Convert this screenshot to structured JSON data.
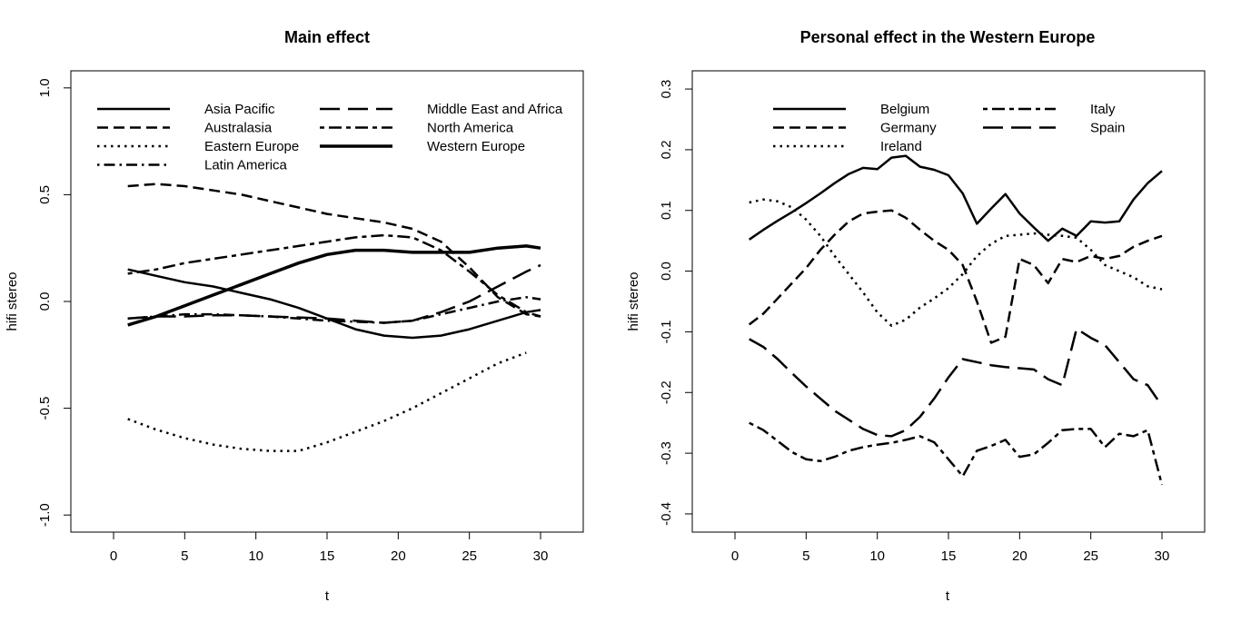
{
  "chart_data": [
    {
      "type": "line",
      "title": "Main effect",
      "xlabel": "t",
      "ylabel": "hifi stereo",
      "xlim": [
        -3,
        33
      ],
      "ylim": [
        -1.08,
        1.08
      ],
      "xticks": [
        0,
        5,
        10,
        15,
        20,
        25,
        30
      ],
      "xtick_labels": [
        "0",
        "5",
        "10",
        "15",
        "20",
        "25",
        "30"
      ],
      "yticks": [
        -1.0,
        -0.5,
        0.0,
        0.5,
        1.0
      ],
      "ytick_labels": [
        "-1.0",
        "-0.5",
        "0.0",
        "0.5",
        "1.0"
      ],
      "legend_columns": 2,
      "series": [
        {
          "name": "Asia Pacific",
          "style": "solid",
          "width": 2.5,
          "x": [
            1,
            3,
            5,
            7,
            9,
            11,
            13,
            15,
            17,
            19,
            21,
            23,
            25,
            27,
            29,
            30
          ],
          "y": [
            0.15,
            0.12,
            0.09,
            0.07,
            0.04,
            0.01,
            -0.03,
            -0.08,
            -0.13,
            -0.16,
            -0.17,
            -0.16,
            -0.13,
            -0.09,
            -0.05,
            -0.04
          ]
        },
        {
          "name": "Australasia",
          "style": "dashed",
          "width": 2.5,
          "x": [
            1,
            3,
            5,
            7,
            9,
            11,
            13,
            15,
            17,
            19,
            21,
            23,
            25,
            27,
            29,
            30
          ],
          "y": [
            0.54,
            0.55,
            0.54,
            0.52,
            0.5,
            0.47,
            0.44,
            0.41,
            0.39,
            0.37,
            0.34,
            0.28,
            0.16,
            0.02,
            -0.06,
            -0.07
          ]
        },
        {
          "name": "Eastern Europe",
          "style": "dotted",
          "width": 2.5,
          "x": [
            1,
            3,
            5,
            7,
            9,
            11,
            13,
            15,
            17,
            19,
            21,
            23,
            25,
            27,
            29
          ],
          "y": [
            -0.55,
            -0.6,
            -0.64,
            -0.67,
            -0.69,
            -0.7,
            -0.7,
            -0.66,
            -0.61,
            -0.56,
            -0.5,
            -0.43,
            -0.36,
            -0.29,
            -0.24
          ]
        },
        {
          "name": "Latin America",
          "style": "dashdot",
          "width": 2.5,
          "x": [
            1,
            3,
            5,
            7,
            9,
            11,
            13,
            15,
            17,
            19,
            21,
            23,
            25,
            27,
            29,
            30
          ],
          "y": [
            -0.08,
            -0.07,
            -0.06,
            -0.06,
            -0.065,
            -0.07,
            -0.08,
            -0.09,
            -0.095,
            -0.1,
            -0.09,
            -0.06,
            -0.03,
            0.0,
            0.02,
            0.01
          ]
        },
        {
          "name": "Middle East and Africa",
          "style": "longdash",
          "width": 2.5,
          "x": [
            1,
            3,
            5,
            7,
            9,
            11,
            13,
            15,
            17,
            19,
            21,
            23,
            25,
            27,
            29,
            30
          ],
          "y": [
            -0.08,
            -0.07,
            -0.07,
            -0.065,
            -0.065,
            -0.07,
            -0.075,
            -0.08,
            -0.09,
            -0.1,
            -0.09,
            -0.05,
            0.0,
            0.07,
            0.14,
            0.17
          ]
        },
        {
          "name": "North America",
          "style": "twodash",
          "width": 2.5,
          "x": [
            1,
            3,
            5,
            7,
            9,
            11,
            13,
            15,
            17,
            19,
            21,
            23,
            25,
            27,
            29,
            30
          ],
          "y": [
            0.13,
            0.15,
            0.18,
            0.2,
            0.22,
            0.24,
            0.26,
            0.28,
            0.3,
            0.31,
            0.3,
            0.24,
            0.14,
            0.03,
            -0.05,
            -0.07
          ]
        },
        {
          "name": "Western Europe",
          "style": "solid",
          "width": 3.5,
          "x": [
            1,
            3,
            5,
            7,
            9,
            11,
            13,
            15,
            17,
            19,
            21,
            23,
            25,
            27,
            29,
            30
          ],
          "y": [
            -0.11,
            -0.07,
            -0.02,
            0.03,
            0.08,
            0.13,
            0.18,
            0.22,
            0.24,
            0.24,
            0.23,
            0.23,
            0.23,
            0.25,
            0.26,
            0.25
          ]
        }
      ]
    },
    {
      "type": "line",
      "title": "Personal effect in the Western Europe",
      "xlabel": "t",
      "ylabel": "hifi stereo",
      "xlim": [
        -3,
        33
      ],
      "ylim": [
        -0.43,
        0.33
      ],
      "xticks": [
        0,
        5,
        10,
        15,
        20,
        25,
        30
      ],
      "xtick_labels": [
        "0",
        "5",
        "10",
        "15",
        "20",
        "25",
        "30"
      ],
      "yticks": [
        -0.4,
        -0.3,
        -0.2,
        -0.1,
        0.0,
        0.1,
        0.2,
        0.3
      ],
      "ytick_labels": [
        "-0.4",
        "-0.3",
        "-0.2",
        "-0.1",
        "0.0",
        "0.1",
        "0.2",
        "0.3"
      ],
      "legend_columns": 2,
      "series": [
        {
          "name": "Belgium",
          "style": "solid",
          "width": 2.5,
          "x": [
            1,
            2,
            3,
            4,
            5,
            6,
            7,
            8,
            9,
            10,
            11,
            12,
            13,
            14,
            15,
            16,
            17,
            18,
            19,
            20,
            21,
            22,
            23,
            24,
            25,
            26,
            27,
            28,
            29,
            30
          ],
          "y": [
            0.052,
            0.068,
            0.083,
            0.097,
            0.112,
            0.128,
            0.145,
            0.16,
            0.17,
            0.168,
            0.187,
            0.19,
            0.172,
            0.167,
            0.158,
            0.128,
            0.078,
            0.103,
            0.127,
            0.095,
            0.072,
            0.05,
            0.07,
            0.058,
            0.082,
            0.08,
            0.082,
            0.118,
            0.145,
            0.165
          ]
        },
        {
          "name": "Germany",
          "style": "dashed",
          "width": 2.5,
          "x": [
            1,
            2,
            3,
            4,
            5,
            6,
            7,
            8,
            9,
            10,
            11,
            12,
            13,
            14,
            15,
            16,
            17,
            18,
            19,
            20,
            21,
            22,
            23,
            24,
            25,
            26,
            27,
            28,
            29,
            30
          ],
          "y": [
            -0.088,
            -0.07,
            -0.045,
            -0.02,
            0.005,
            0.035,
            0.06,
            0.082,
            0.095,
            0.098,
            0.1,
            0.088,
            0.068,
            0.05,
            0.035,
            0.01,
            -0.05,
            -0.118,
            -0.108,
            0.02,
            0.01,
            -0.02,
            0.02,
            0.015,
            0.025,
            0.02,
            0.025,
            0.04,
            0.05,
            0.058
          ]
        },
        {
          "name": "Ireland",
          "style": "dotted",
          "width": 2.5,
          "x": [
            1,
            2,
            3,
            4,
            5,
            6,
            7,
            8,
            9,
            10,
            11,
            12,
            13,
            14,
            15,
            16,
            17,
            18,
            19,
            20,
            21,
            22,
            23,
            24,
            25,
            26,
            27,
            28,
            29,
            30
          ],
          "y": [
            0.113,
            0.118,
            0.115,
            0.105,
            0.085,
            0.058,
            0.025,
            -0.005,
            -0.035,
            -0.068,
            -0.09,
            -0.08,
            -0.06,
            -0.045,
            -0.028,
            -0.005,
            0.025,
            0.045,
            0.058,
            0.06,
            0.062,
            0.06,
            0.058,
            0.055,
            0.035,
            0.01,
            0.0,
            -0.01,
            -0.025,
            -0.03
          ]
        },
        {
          "name": "Italy",
          "style": "twodash",
          "width": 2.5,
          "x": [
            1,
            2,
            3,
            4,
            5,
            6,
            7,
            8,
            9,
            10,
            11,
            12,
            13,
            14,
            15,
            16,
            17,
            18,
            19,
            20,
            21,
            22,
            23,
            24,
            25,
            26,
            27,
            28,
            29,
            30
          ],
          "y": [
            -0.25,
            -0.262,
            -0.28,
            -0.298,
            -0.31,
            -0.313,
            -0.306,
            -0.296,
            -0.29,
            -0.286,
            -0.283,
            -0.278,
            -0.272,
            -0.282,
            -0.31,
            -0.338,
            -0.296,
            -0.288,
            -0.278,
            -0.306,
            -0.302,
            -0.283,
            -0.262,
            -0.26,
            -0.26,
            -0.29,
            -0.268,
            -0.272,
            -0.262,
            -0.352
          ]
        },
        {
          "name": "Spain",
          "style": "longdash",
          "width": 2.5,
          "x": [
            1,
            2,
            3,
            4,
            5,
            6,
            7,
            8,
            9,
            10,
            11,
            12,
            13,
            14,
            15,
            16,
            17,
            18,
            19,
            20,
            21,
            22,
            23,
            24,
            25,
            26,
            27,
            28,
            29,
            30
          ],
          "y": [
            -0.112,
            -0.125,
            -0.145,
            -0.168,
            -0.19,
            -0.21,
            -0.23,
            -0.245,
            -0.26,
            -0.27,
            -0.272,
            -0.262,
            -0.24,
            -0.21,
            -0.175,
            -0.145,
            -0.15,
            -0.155,
            -0.158,
            -0.16,
            -0.162,
            -0.178,
            -0.188,
            -0.095,
            -0.11,
            -0.122,
            -0.15,
            -0.178,
            -0.188,
            -0.222
          ]
        }
      ]
    }
  ]
}
